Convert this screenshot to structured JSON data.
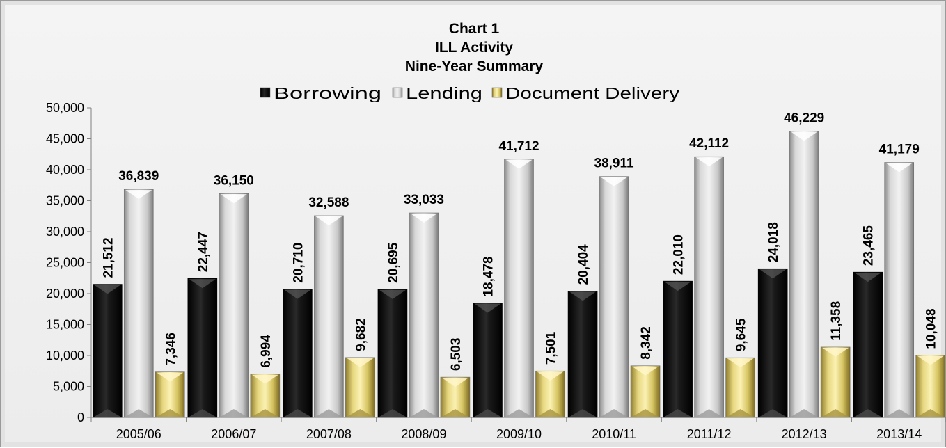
{
  "chart_data": {
    "type": "bar",
    "title": [
      "Chart 1",
      "ILL Activity",
      "Nine-Year Summary"
    ],
    "categories": [
      "2005/06",
      "2006/07",
      "2007/08",
      "2008/09",
      "2009/10",
      "2010/11",
      "2011/12",
      "2012/13",
      "2013/14"
    ],
    "series": [
      {
        "name": "Borrowing",
        "color": "#0d0d0d",
        "label_orientation": "vertical",
        "values": [
          21512,
          22447,
          20710,
          20695,
          18478,
          20404,
          22010,
          24018,
          23465
        ],
        "labels": [
          "21,512",
          "22,447",
          "20,710",
          "20,695",
          "18,478",
          "20,404",
          "22,010",
          "24,018",
          "23,465"
        ]
      },
      {
        "name": "Lending",
        "color": "#bdbdbd",
        "label_orientation": "horizontal",
        "values": [
          36839,
          36150,
          32588,
          33033,
          41712,
          38911,
          42112,
          46229,
          41179
        ],
        "labels": [
          "36,839",
          "36,150",
          "32,588",
          "33,033",
          "41,712",
          "38,911",
          "42,112",
          "46,229",
          "41,179"
        ]
      },
      {
        "name": "Document Delivery",
        "color": "#d9c86a",
        "label_orientation": "vertical",
        "values": [
          7346,
          6994,
          9682,
          6503,
          7501,
          8342,
          9645,
          11358,
          10048
        ],
        "labels": [
          "7,346",
          "6,994",
          "9,682",
          "6,503",
          "7,501",
          "8,342",
          "9,645",
          "11,358",
          "10,048"
        ]
      }
    ],
    "ylim": [
      0,
      50000
    ],
    "yticks": [
      0,
      5000,
      10000,
      15000,
      20000,
      25000,
      30000,
      35000,
      40000,
      45000,
      50000
    ],
    "ytick_labels": [
      "0",
      "5,000",
      "10,000",
      "15,000",
      "20,000",
      "25,000",
      "30,000",
      "35,000",
      "40,000",
      "45,000",
      "50,000"
    ],
    "legend_position": "top",
    "grid": false
  }
}
